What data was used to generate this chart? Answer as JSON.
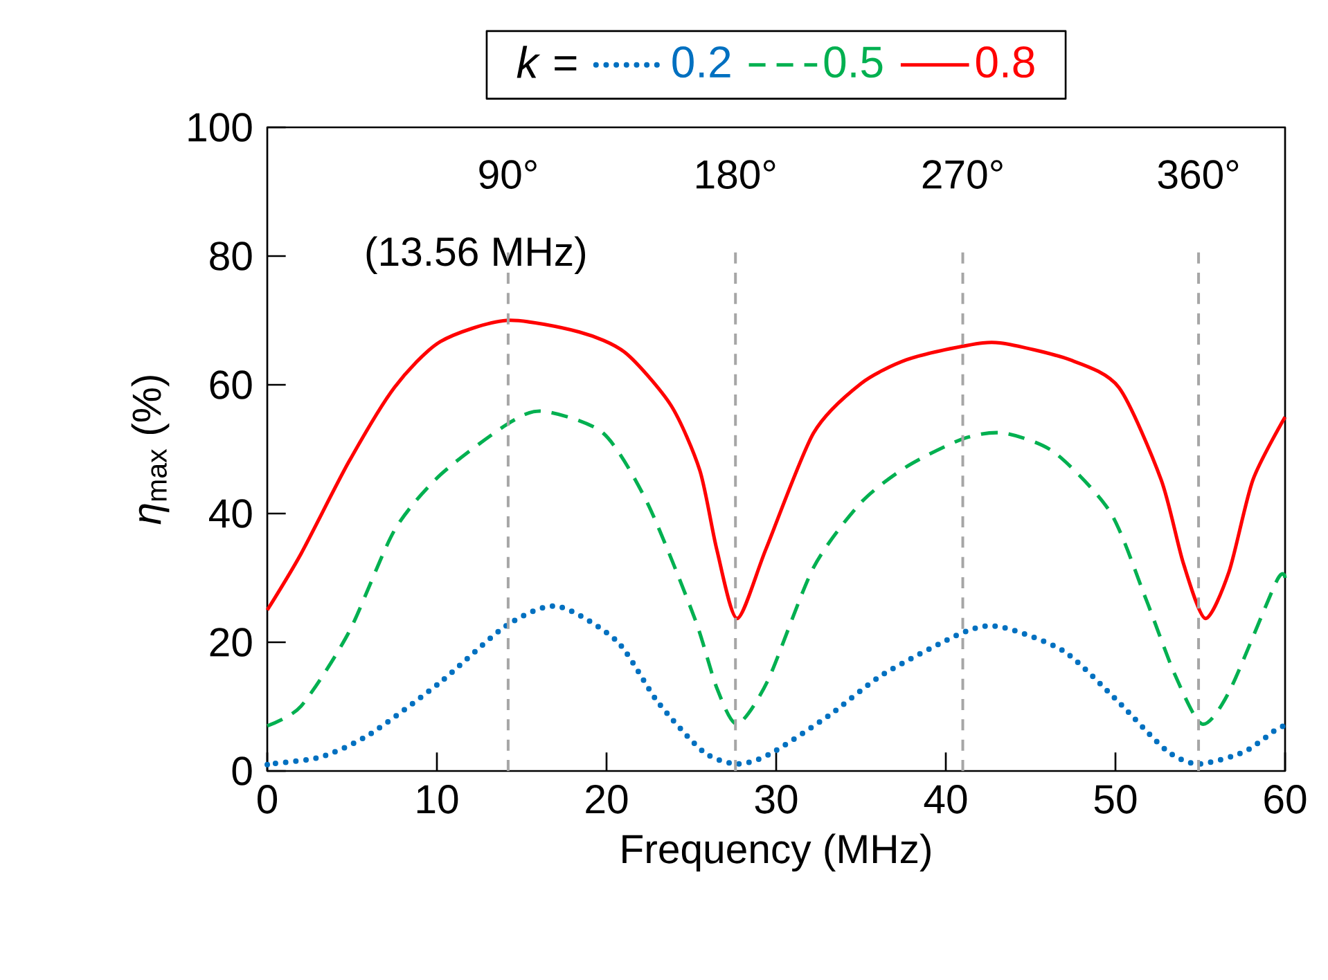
{
  "chart_data": {
    "type": "line",
    "xlabel": "Frequency (MHz)",
    "ylabel": "*η*$_{max}$ (%)",
    "legend_title": "*k* =",
    "legend": "top",
    "grid": false,
    "marker": "none",
    "xlim": [
      0,
      60
    ],
    "ylim": [
      0,
      100
    ],
    "xticks": [
      0,
      10,
      20,
      30,
      40,
      50,
      60
    ],
    "yticks": [
      0,
      20,
      40,
      60,
      80,
      100
    ],
    "series": [
      {
        "name": "0.2",
        "color": "#0070c0",
        "line_style": "dotted",
        "x": [
          0,
          0.2,
          3.2,
          6.1,
          10.2,
          14.1,
          17.1,
          20.6,
          23.0,
          25.7,
          27.7,
          29.6,
          33.1,
          36.3,
          41.0,
          43.2,
          46.9,
          50.0,
          53.0,
          54.9,
          57.6,
          59.5,
          60
        ],
        "values": [
          1,
          1.1,
          2.2,
          5.8,
          13.8,
          22.6,
          25.6,
          20.2,
          10.8,
          3,
          1.1,
          2.6,
          8.6,
          15,
          21.5,
          22.4,
          18.7,
          11.2,
          3.2,
          1.1,
          3,
          6.5,
          7
        ]
      },
      {
        "name": "0.5",
        "color": "#00b050",
        "line_style": "dashed",
        "x": [
          0,
          2.0,
          4.8,
          7.5,
          10.2,
          14.1,
          16.2,
          19.8,
          22.4,
          25.2,
          26.5,
          27.7,
          29.5,
          32.2,
          35.0,
          37.7,
          41.0,
          43.4,
          46.4,
          49.7,
          51.8,
          53.5,
          55.1,
          56.7,
          59.5,
          60
        ],
        "values": [
          7,
          10.1,
          21.5,
          37.4,
          46,
          53.8,
          55.9,
          52.5,
          41.7,
          23.7,
          12.9,
          7.3,
          14,
          31.6,
          41.7,
          47.3,
          51.6,
          52.5,
          49.5,
          40.2,
          26.7,
          15,
          7.3,
          12.3,
          29.5,
          30
        ]
      },
      {
        "name": "0.8",
        "color": "#ff0000",
        "line_style": "solid",
        "x": [
          0,
          2.0,
          4.8,
          7.5,
          10.2,
          14.1,
          18.4,
          21.1,
          23.8,
          25.5,
          26.5,
          27.7,
          29.4,
          32.2,
          35.0,
          37.7,
          41.0,
          43.2,
          47.3,
          50.2,
          52.7,
          54.0,
          55.3,
          56.7,
          58.1,
          60
        ],
        "values": [
          25,
          33.8,
          48,
          59.6,
          66.7,
          70,
          68.2,
          65,
          56.8,
          46.7,
          34.4,
          23.7,
          34.5,
          52.5,
          60.2,
          63.9,
          66,
          66.5,
          63.9,
          59.6,
          45.2,
          32.3,
          23.7,
          31,
          45.2,
          55
        ]
      }
    ],
    "ref_lines": [
      {
        "axis": "x",
        "value": 14.2,
        "color": "#a6a6a6",
        "line_style": "dashed"
      },
      {
        "axis": "x",
        "value": 27.6,
        "color": "#a6a6a6",
        "line_style": "dashed"
      },
      {
        "axis": "x",
        "value": 41.0,
        "color": "#a6a6a6",
        "line_style": "dashed"
      },
      {
        "axis": "x",
        "value": 54.9,
        "color": "#a6a6a6",
        "line_style": "dashed"
      }
    ],
    "annotations": [
      "90°",
      "180°",
      "270°",
      "360°",
      "(13.56 MHz)"
    ]
  }
}
